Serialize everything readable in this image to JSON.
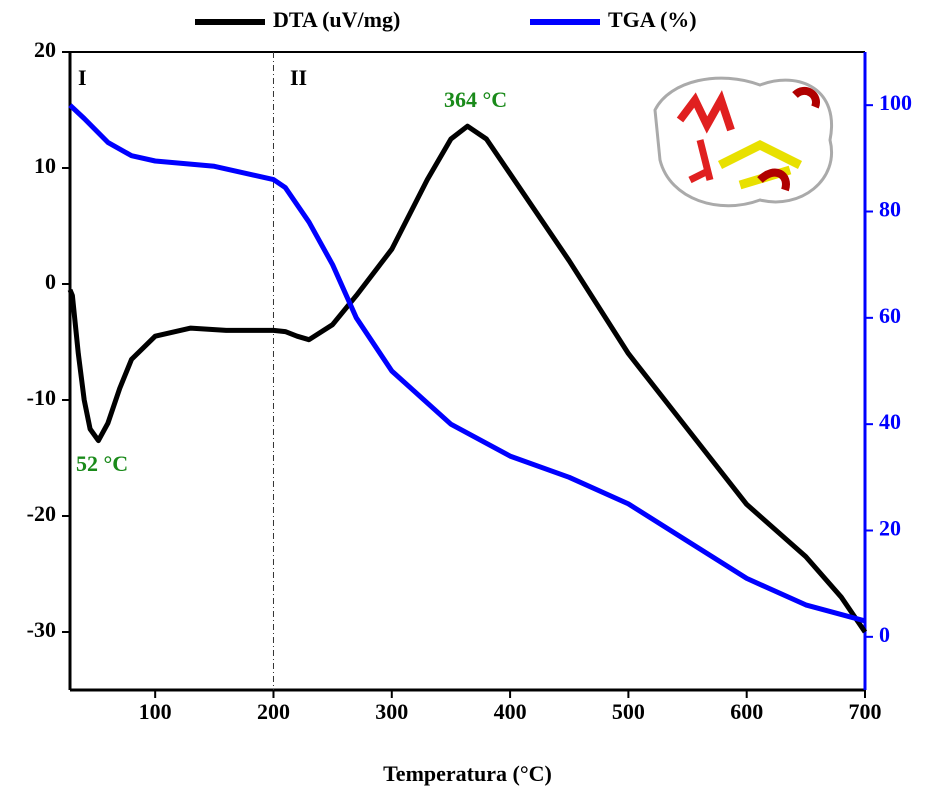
{
  "chart_data": {
    "type": "line",
    "xlabel": "Temperatura (°C)",
    "xlim": [
      28,
      700
    ],
    "xticks": [
      100,
      200,
      300,
      400,
      500,
      600,
      700
    ],
    "ylim": [
      -35,
      20
    ],
    "yticks": [
      -30,
      -20,
      -10,
      0,
      10,
      20
    ],
    "y2lim": [
      -10,
      110
    ],
    "y2ticks": [
      0,
      20,
      40,
      60,
      80,
      100
    ],
    "vlines": [
      200
    ],
    "region_labels": [
      "I",
      "II"
    ],
    "annotations": [
      "52 °C",
      "364 °C"
    ],
    "legend": "top",
    "series": [
      {
        "name": "DTA (uV/mg)",
        "color": "#000000",
        "axis": "y",
        "x": [
          28,
          30,
          35,
          40,
          45,
          52,
          60,
          70,
          80,
          100,
          130,
          160,
          200,
          210,
          220,
          230,
          250,
          270,
          300,
          330,
          350,
          364,
          380,
          400,
          450,
          500,
          550,
          600,
          650,
          680,
          700
        ],
        "values": [
          -0.5,
          -1,
          -6,
          -10,
          -12.5,
          -13.5,
          -12,
          -9,
          -6.5,
          -4.5,
          -3.8,
          -4,
          -4,
          -4.1,
          -4.5,
          -4.8,
          -3.5,
          -1,
          3,
          9,
          12.5,
          13.6,
          12.5,
          9.5,
          2,
          -6,
          -12.5,
          -19,
          -23.5,
          -27,
          -30
        ]
      },
      {
        "name": "TGA (%)",
        "color": "#0000ff",
        "axis": "y2",
        "x": [
          28,
          40,
          60,
          80,
          100,
          150,
          200,
          210,
          230,
          250,
          270,
          300,
          350,
          400,
          450,
          500,
          550,
          600,
          650,
          700
        ],
        "values": [
          100,
          97.5,
          93,
          90.5,
          89.5,
          88.5,
          86,
          84.5,
          78,
          70,
          60,
          50,
          40,
          34,
          30,
          25,
          18,
          11,
          6,
          3
        ]
      }
    ]
  }
}
